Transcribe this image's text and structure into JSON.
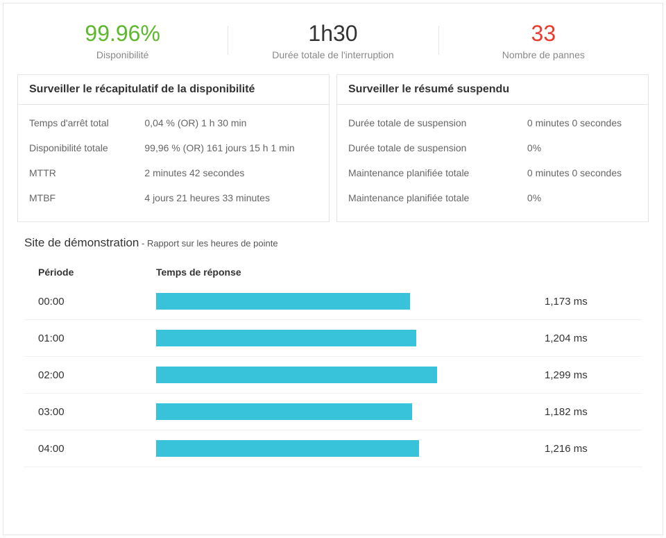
{
  "colors": {
    "green": "#5cb82c",
    "dark": "#333333",
    "red": "#e83c2e",
    "bar": "#38c3da",
    "border": "#e5e5e5",
    "muted": "#888888"
  },
  "kpis": [
    {
      "value": "99.96%",
      "label": "Disponibilité",
      "color": "green"
    },
    {
      "value": "1h30",
      "label": "Durée totale de l'interruption",
      "color": "dark"
    },
    {
      "value": "33",
      "label": "Nombre de pannes",
      "color": "red"
    }
  ],
  "availability_panel": {
    "title": "Surveiller le récapitulatif de la disponibilité",
    "rows": [
      {
        "k": "Temps d'arrêt total",
        "v": "0,04 % (OR) 1 h 30 min"
      },
      {
        "k": "Disponibilité totale",
        "v": "99,96 % (OR) 161 jours 15 h 1 min"
      },
      {
        "k": "MTTR",
        "v": "2 minutes 42 secondes"
      },
      {
        "k": "MTBF",
        "v": "4 jours 21 heures 33 minutes"
      }
    ]
  },
  "suspended_panel": {
    "title": "Surveiller le résumé suspendu",
    "rows": [
      {
        "k": "Durée totale de suspension",
        "v": "0 minutes 0 secondes"
      },
      {
        "k": "Durée totale de suspension",
        "v": "0%"
      },
      {
        "k": "Maintenance planifiée totale",
        "v": "0 minutes 0 secondes"
      },
      {
        "k": "Maintenance planifiée totale",
        "v": "0%"
      }
    ]
  },
  "report": {
    "title": "Site de démonstration",
    "subtitle": " - Rapport sur les heures de pointe",
    "head_period": "Période",
    "head_response": "Temps de réponse",
    "max_ms": 1700,
    "rows": [
      {
        "period": "00:00",
        "ms": 1173,
        "label": "1,173 ms"
      },
      {
        "period": "01:00",
        "ms": 1204,
        "label": "1,204 ms"
      },
      {
        "period": "02:00",
        "ms": 1299,
        "label": "1,299 ms"
      },
      {
        "period": "03:00",
        "ms": 1182,
        "label": "1,182 ms"
      },
      {
        "period": "04:00",
        "ms": 1216,
        "label": "1,216 ms"
      }
    ]
  }
}
